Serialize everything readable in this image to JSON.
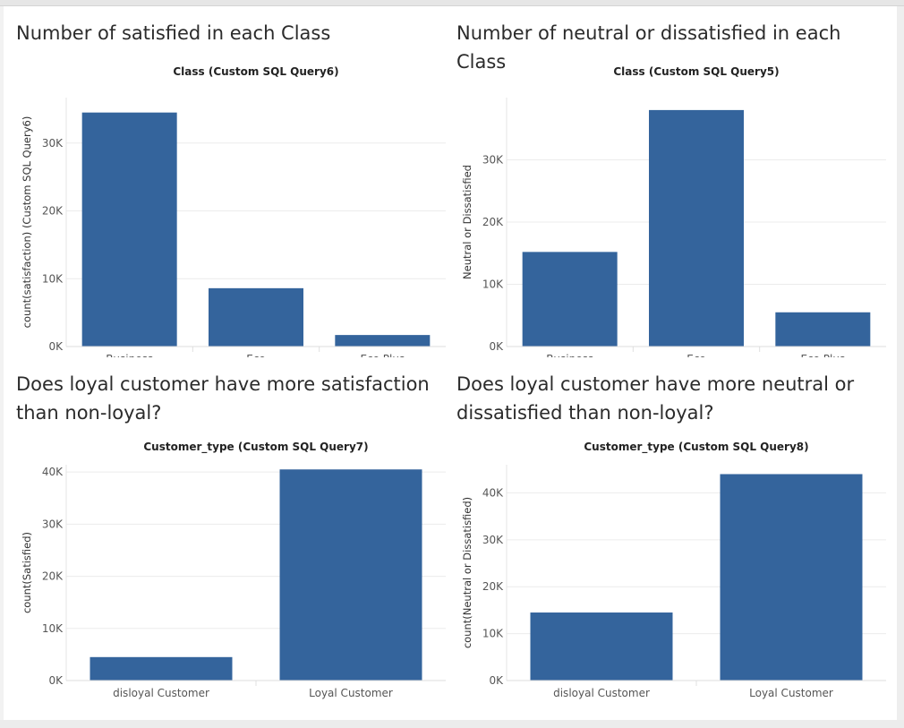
{
  "theme": {
    "bar_color": "#34649c",
    "grid_color": "#ececec",
    "axis_text_color": "#555555",
    "header_text_color": "#222222"
  },
  "panels": [
    {
      "title": "Number of satisfied in each Class"
    },
    {
      "title": "Number of neutral or dissatisfied in each Class"
    },
    {
      "title": "Does loyal customer have more satisfaction than non-loyal?"
    },
    {
      "title": "Does loyal customer have more neutral or dissatisfied than non-loyal?"
    }
  ],
  "chart_data": [
    {
      "type": "bar",
      "header": "Class (Custom SQL Query6)",
      "ylabel": "count(satisfaction) (Custom SQL Query6)",
      "categories": [
        "Business",
        "Eco",
        "Eco Plus"
      ],
      "values": [
        34500,
        8600,
        1700
      ],
      "yticks": [
        "0K",
        "10K",
        "20K",
        "30K"
      ],
      "ytick_values": [
        0,
        10000,
        20000,
        30000
      ],
      "ylim": [
        0,
        36700
      ],
      "grid": true
    },
    {
      "type": "bar",
      "header": "Class (Custom SQL Query5)",
      "ylabel": "Neutral or Dissatisfied",
      "categories": [
        "Business",
        "Eco",
        "Eco Plus"
      ],
      "values": [
        15200,
        38000,
        5500
      ],
      "yticks": [
        "0K",
        "10K",
        "20K",
        "30K"
      ],
      "ytick_values": [
        0,
        10000,
        20000,
        30000
      ],
      "ylim": [
        0,
        40000
      ],
      "grid": true
    },
    {
      "type": "bar",
      "header": "Customer_type (Custom SQL Query7)",
      "ylabel": "count(Satisfied)",
      "categories": [
        "disloyal Customer",
        "Loyal Customer"
      ],
      "values": [
        4500,
        40500
      ],
      "yticks": [
        "0K",
        "10K",
        "20K",
        "30K",
        "40K"
      ],
      "ytick_values": [
        0,
        10000,
        20000,
        30000,
        40000
      ],
      "ylim": [
        0,
        41400
      ],
      "grid": true
    },
    {
      "type": "bar",
      "header": "Customer_type (Custom SQL Query8)",
      "ylabel": "count(Neutral or Dissatisfied)",
      "categories": [
        "disloyal Customer",
        "Loyal Customer"
      ],
      "values": [
        14500,
        44000
      ],
      "yticks": [
        "0K",
        "10K",
        "20K",
        "30K",
        "40K"
      ],
      "ytick_values": [
        0,
        10000,
        20000,
        30000,
        40000
      ],
      "ylim": [
        0,
        46000
      ],
      "grid": true
    }
  ]
}
